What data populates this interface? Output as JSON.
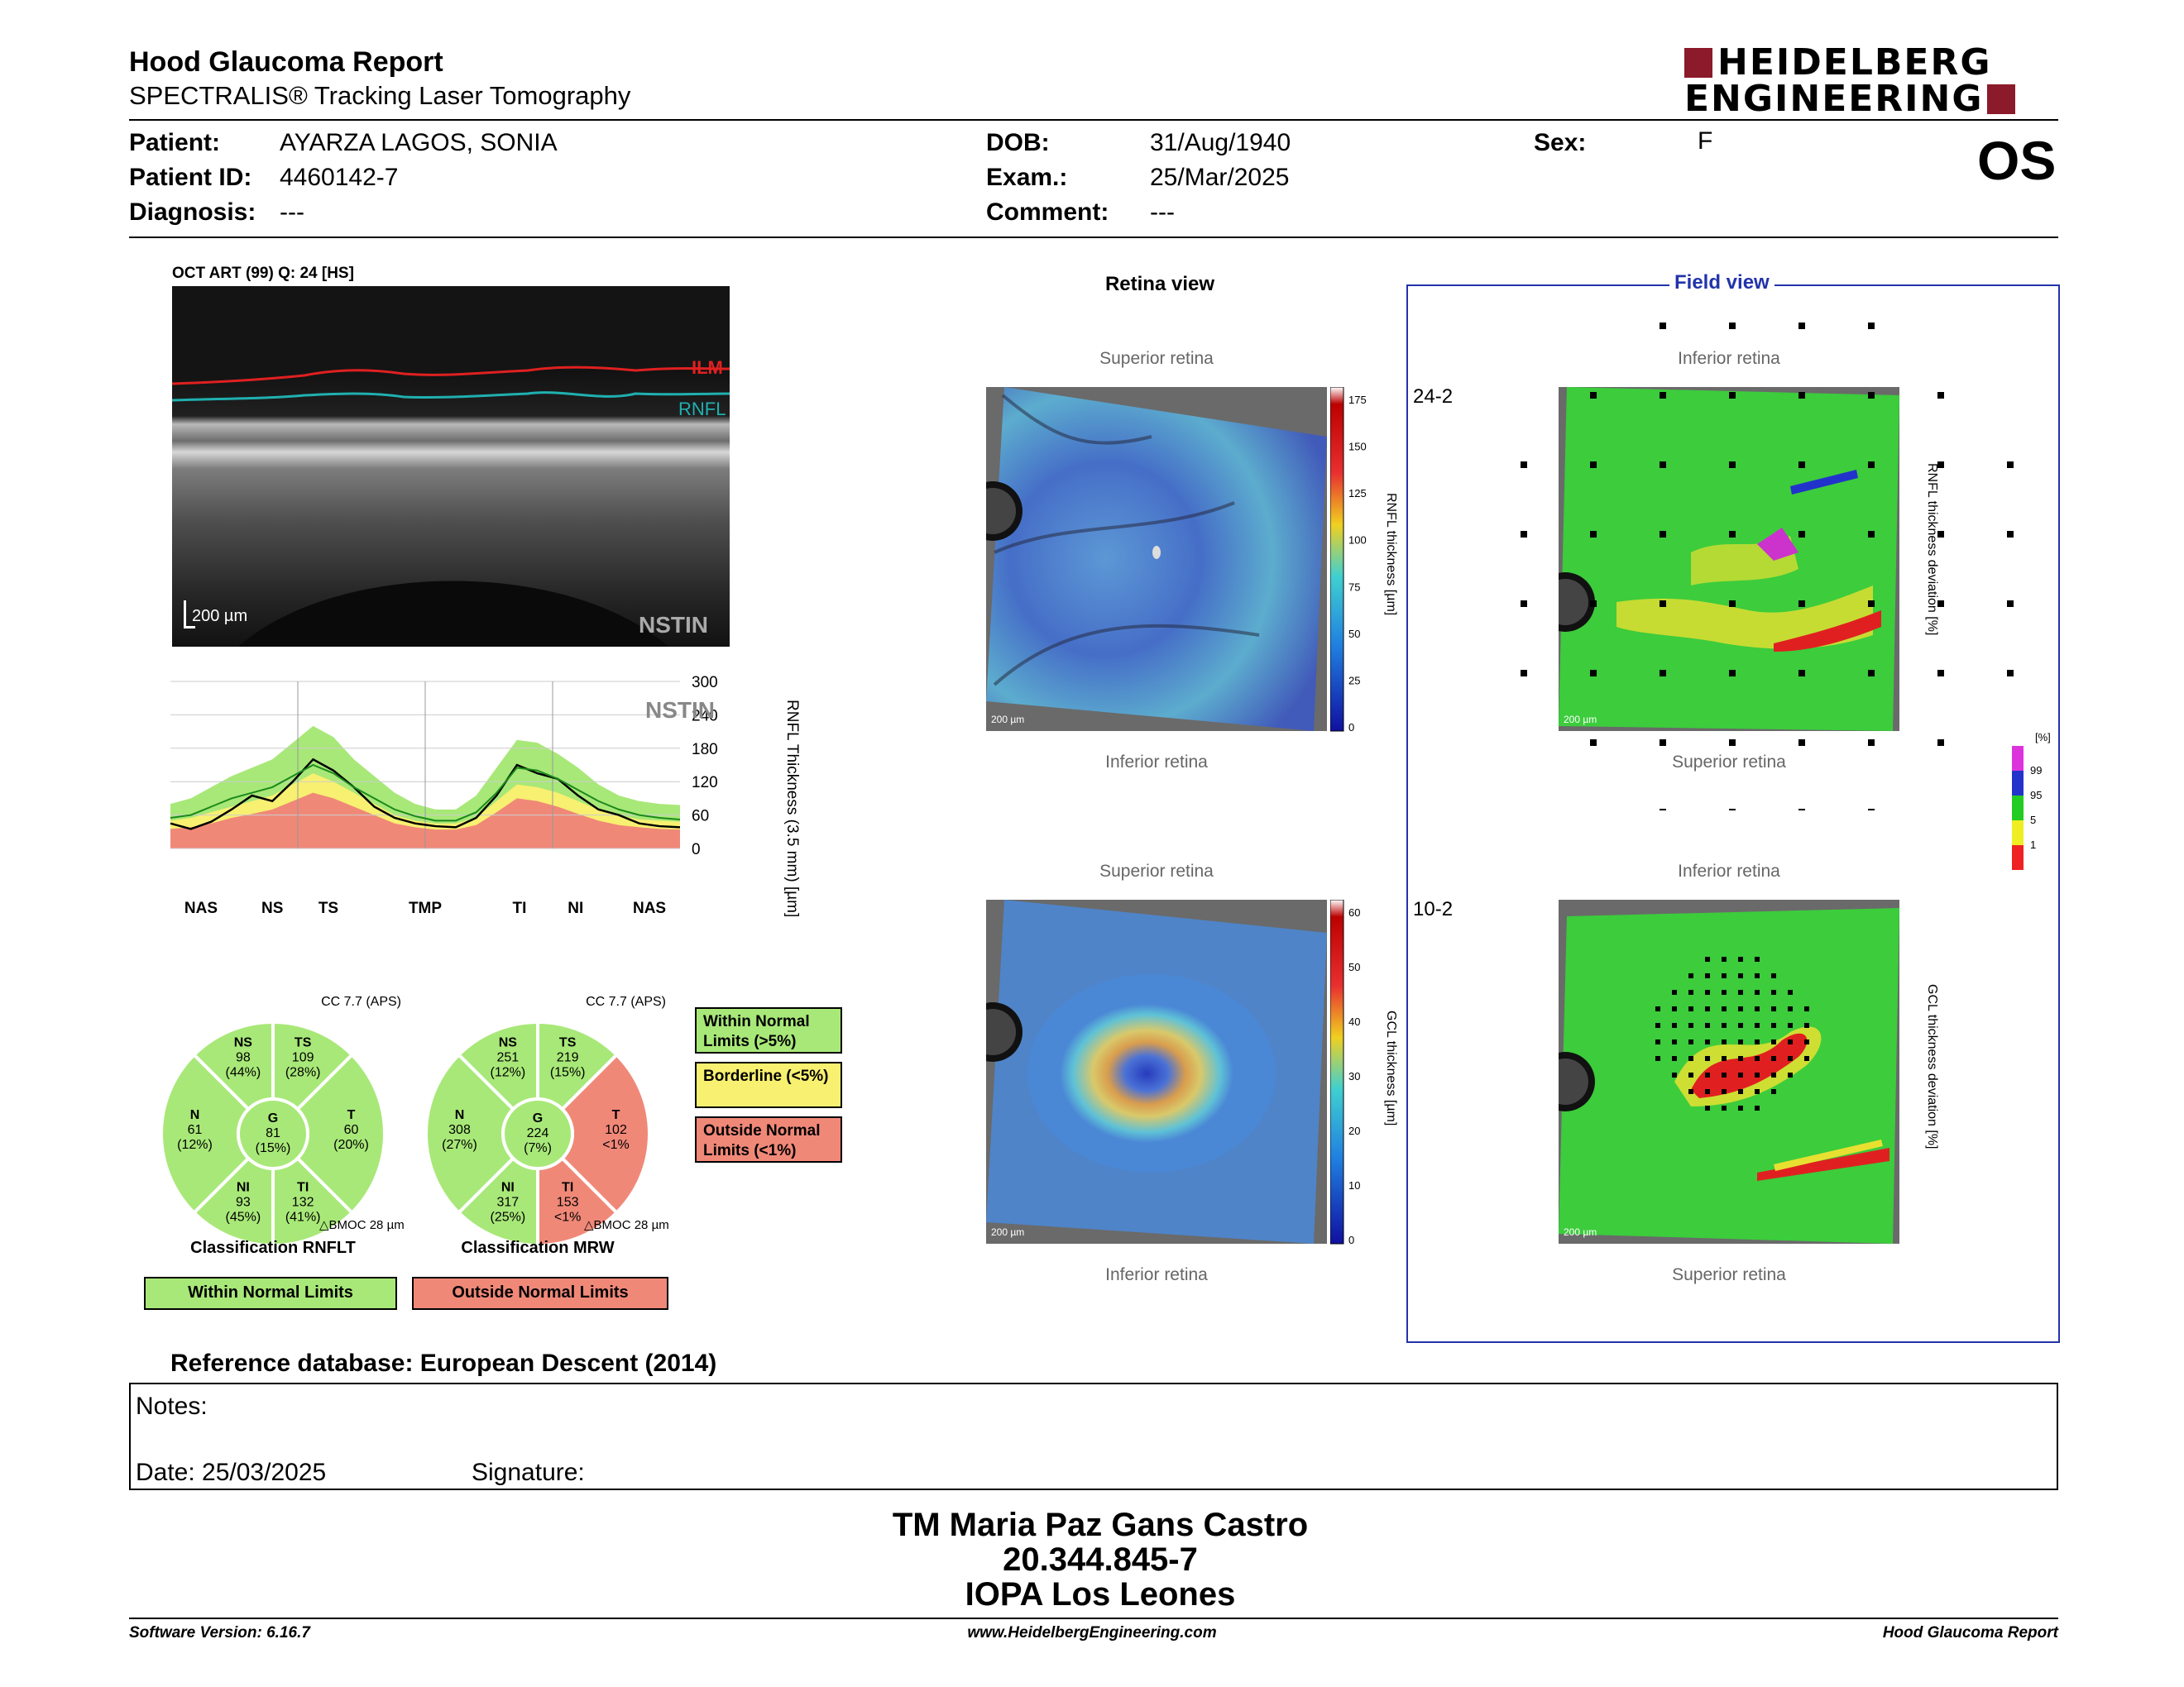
{
  "header": {
    "title": "Hood Glaucoma Report",
    "subtitle": "SPECTRALIS® Tracking Laser Tomography",
    "logo_line1": "HEIDELBERG",
    "logo_line2": "ENGINEERING",
    "eye": "OS"
  },
  "patient": {
    "patient_label": "Patient:",
    "patient_value": "AYARZA LAGOS, SONIA",
    "id_label": "Patient ID:",
    "id_value": "4460142-7",
    "diagnosis_label": "Diagnosis:",
    "diagnosis_value": "---",
    "dob_label": "DOB:",
    "dob_value": "31/Aug/1940",
    "exam_label": "Exam.:",
    "exam_value": "25/Mar/2025",
    "comment_label": "Comment:",
    "comment_value": "---",
    "sex_label": "Sex:",
    "sex_value": "F"
  },
  "oct": {
    "header": "OCT ART (99) Q: 24 [HS]",
    "ilm": "ILM",
    "rnfl": "RNFL",
    "scale": "200 µm",
    "nstin": "NSTIN"
  },
  "colors": {
    "ilm": "#e02020",
    "rnfl": "#20b0b0",
    "green": "#a8e878",
    "yellow": "#f8f070",
    "red": "#f08878",
    "brand": "#8b1a2a",
    "field_border": "#2233aa"
  },
  "chart_data": {
    "type": "line",
    "title": "NSTIN",
    "ylabel": "RNFL Thickness (3.5 mm) [µm]",
    "ylim": [
      0,
      300
    ],
    "yticks": [
      0,
      60,
      120,
      180,
      240,
      300
    ],
    "sector_labels": [
      "NAS",
      "NS",
      "TS",
      "TMP",
      "TI",
      "NI",
      "NAS"
    ],
    "x": [
      0,
      4,
      8,
      12,
      16,
      20,
      24,
      28,
      32,
      36,
      40,
      44,
      48,
      52,
      56,
      60,
      64,
      68,
      72,
      76,
      80,
      84,
      88,
      92,
      96,
      100
    ],
    "series": [
      {
        "values": [
          45,
          35,
          48,
          70,
          95,
          85,
          120,
          160,
          140,
          110,
          75,
          55,
          45,
          40,
          38,
          55,
          95,
          150,
          135,
          125,
          95,
          70,
          60,
          45,
          40,
          38
        ]
      },
      {
        "values": [
          55,
          60,
          75,
          90,
          100,
          110,
          130,
          150,
          135,
          110,
          90,
          70,
          58,
          50,
          50,
          65,
          100,
          145,
          140,
          125,
          105,
          85,
          70,
          60,
          55,
          52
        ]
      }
    ],
    "normal_upper": [
      80,
      90,
      110,
      130,
      145,
      160,
      190,
      220,
      200,
      160,
      130,
      100,
      80,
      70,
      70,
      95,
      145,
      195,
      190,
      170,
      145,
      115,
      95,
      85,
      80,
      78
    ],
    "borderline_upper": [
      50,
      55,
      65,
      75,
      85,
      95,
      115,
      135,
      120,
      100,
      80,
      60,
      50,
      45,
      45,
      55,
      85,
      115,
      110,
      100,
      85,
      70,
      60,
      52,
      50,
      48
    ],
    "red_upper": [
      35,
      38,
      45,
      55,
      62,
      70,
      85,
      100,
      90,
      75,
      60,
      45,
      38,
      34,
      34,
      42,
      65,
      90,
      85,
      75,
      62,
      50,
      42,
      38,
      35,
      34
    ]
  },
  "rnflt_pie": {
    "cc": "CC 7.7 (APS)",
    "NS": {
      "label": "NS",
      "value": "98",
      "pct": "(44%)"
    },
    "TS": {
      "label": "TS",
      "value": "109",
      "pct": "(28%)"
    },
    "N": {
      "label": "N",
      "value": "61",
      "pct": "(12%)"
    },
    "G": {
      "label": "G",
      "value": "81",
      "pct": "(15%)"
    },
    "T": {
      "label": "T",
      "value": "60",
      "pct": "(20%)"
    },
    "NI": {
      "label": "NI",
      "value": "93",
      "pct": "(45%)"
    },
    "TI": {
      "label": "TI",
      "value": "132",
      "pct": "(41%)"
    },
    "bmo_label": "BMOC 28 µm",
    "classification_title": "Classification RNFLT",
    "classification": "Within Normal Limits"
  },
  "mrw_pie": {
    "cc": "CC 7.7 (APS)",
    "NS": {
      "label": "NS",
      "value": "251",
      "pct": "(12%)"
    },
    "TS": {
      "label": "TS",
      "value": "219",
      "pct": "(15%)"
    },
    "N": {
      "label": "N",
      "value": "308",
      "pct": "(27%)"
    },
    "G": {
      "label": "G",
      "value": "224",
      "pct": "(7%)"
    },
    "T": {
      "label": "T",
      "value": "102",
      "pct": "<1%"
    },
    "NI": {
      "label": "NI",
      "value": "317",
      "pct": "(25%)"
    },
    "TI": {
      "label": "TI",
      "value": "153",
      "pct": "<1%"
    },
    "bmo_label": "BMOC 28 µm",
    "classification_title": "Classification MRW",
    "classification": "Outside Normal Limits"
  },
  "legend": {
    "within": "Within Normal Limits (>5%)",
    "borderline": "Borderline (<5%)",
    "outside": "Outside Normal Limits (<1%)"
  },
  "retina_view": {
    "title": "Retina view",
    "top1": "Superior retina",
    "bottom1": "Inferior retina",
    "top2": "Superior retina",
    "bottom2": "Inferior retina",
    "scale": "200 µm",
    "cbar1_label": "RNFL thickness [µm]",
    "cbar1_ticks": [
      "175",
      "150",
      "125",
      "100",
      "75",
      "50",
      "25",
      "0"
    ],
    "cbar2_label": "GCL thickness [µm]",
    "cbar2_ticks": [
      "60",
      "50",
      "40",
      "30",
      "20",
      "10",
      "0"
    ]
  },
  "field_view": {
    "title": "Field view",
    "label1": "24-2",
    "label2": "10-2",
    "top1": "Inferior retina",
    "bottom1": "Superior retina",
    "top2": "Inferior retina",
    "bottom2": "Superior retina",
    "dev1_label": "RNFL thickness deviation [%]",
    "dev2_label": "GCL thickness deviation [%]",
    "pct_unit": "[%]",
    "pct_ticks": [
      "99",
      "95",
      "5",
      "1"
    ]
  },
  "reference": "Reference database: European Descent (2014)",
  "notes": {
    "notes_label": "Notes:",
    "date_label": "Date: 25/03/2025",
    "signature_label": "Signature:"
  },
  "signature_block": {
    "name": "TM Maria Paz Gans Castro",
    "id": "20.344.845-7",
    "institution": "IOPA Los Leones"
  },
  "footer": {
    "version": "Software Version: 6.16.7",
    "url": "www.HeidelbergEngineering.com",
    "report": "Hood Glaucoma Report"
  }
}
